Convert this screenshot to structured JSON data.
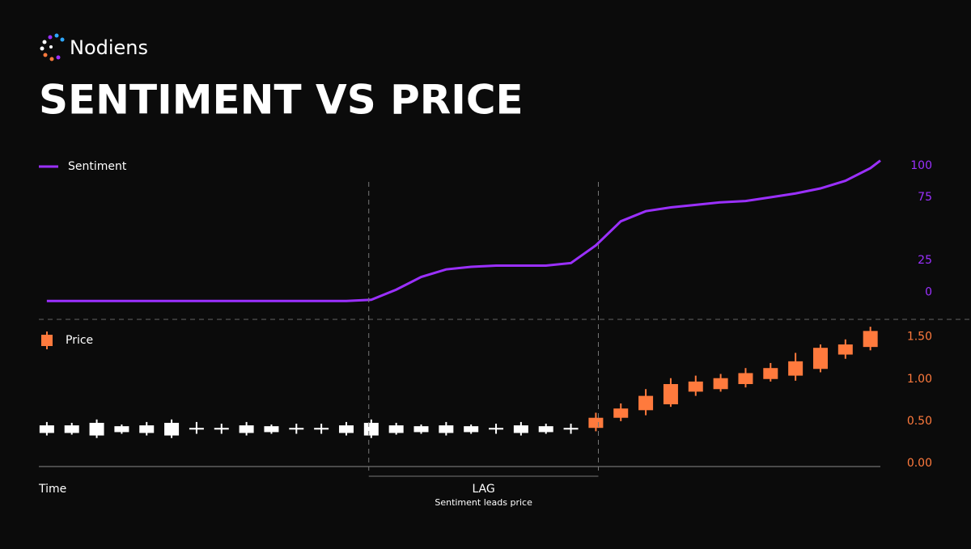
{
  "brand": "Nodiens",
  "title": "SENTIMENT VS PRICE",
  "chart_data": [
    {
      "type": "line",
      "series": [
        {
          "name": "Sentiment",
          "color": "#9b30ff",
          "x": [
            0,
            1,
            2,
            3,
            4,
            5,
            6,
            7,
            8,
            9,
            10,
            11,
            12,
            13,
            14,
            15,
            16,
            17,
            18,
            19,
            20,
            21,
            22,
            23,
            24,
            25,
            26,
            27,
            28,
            29,
            30,
            31,
            32,
            33,
            33.4
          ],
          "values": [
            -7,
            -7,
            -7,
            -7,
            -7,
            -7,
            -7,
            -7,
            -7,
            -7,
            -7,
            -7,
            -7,
            -6,
            2,
            12,
            18,
            20,
            21,
            21,
            21,
            23,
            37,
            56,
            64,
            67,
            69,
            71,
            72,
            75,
            78,
            82,
            88,
            98,
            104
          ]
        }
      ],
      "xlim": [
        -0.32,
        33.4
      ],
      "ylim": [
        -10,
        105
      ],
      "yticks": [
        0,
        25,
        75,
        100
      ]
    },
    {
      "type": "candlestick",
      "x_label": "Time",
      "lag_label": "LAG",
      "lag_note": "Sentiment leads price",
      "lag_range": [
        12.9,
        22.1
      ],
      "series": [
        {
          "name": "Price",
          "color": "#ff7a3d",
          "colors": [
            "#ffffff",
            "#ffffff",
            "#ffffff",
            "#ffffff",
            "#ffffff",
            "#ffffff",
            "#ffffff",
            "#ffffff",
            "#ffffff",
            "#ffffff",
            "#ffffff",
            "#ffffff",
            "#ffffff",
            "#ffffff",
            "#ffffff",
            "#ffffff",
            "#ffffff",
            "#ffffff",
            "#ffffff",
            "#ffffff",
            "#ffffff",
            "#ffffff",
            "#ff7a3d",
            "#ff7a3d",
            "#ff7a3d",
            "#ff7a3d",
            "#ff7a3d",
            "#ff7a3d",
            "#ff7a3d",
            "#ff7a3d",
            "#ff7a3d",
            "#ff7a3d",
            "#ff7a3d",
            "#ff7a3d"
          ],
          "x": [
            0,
            1,
            2,
            3,
            4,
            5,
            6,
            7,
            8,
            9,
            10,
            11,
            12,
            13,
            14,
            15,
            16,
            17,
            18,
            19,
            20,
            21,
            22,
            23,
            24,
            25,
            26,
            27,
            28,
            29,
            30,
            31,
            32,
            33
          ],
          "open": [
            0.36,
            0.36,
            0.33,
            0.37,
            0.36,
            0.33,
            0.4,
            0.4,
            0.36,
            0.37,
            0.4,
            0.4,
            0.36,
            0.33,
            0.36,
            0.37,
            0.36,
            0.37,
            0.4,
            0.36,
            0.37,
            0.4,
            0.42,
            0.54,
            0.63,
            0.7,
            0.85,
            0.88,
            0.94,
            1.0,
            1.04,
            1.12,
            1.29,
            1.38
          ],
          "close": [
            0.45,
            0.45,
            0.48,
            0.44,
            0.45,
            0.48,
            0.42,
            0.42,
            0.45,
            0.44,
            0.42,
            0.42,
            0.45,
            0.48,
            0.45,
            0.44,
            0.45,
            0.44,
            0.42,
            0.45,
            0.44,
            0.42,
            0.54,
            0.65,
            0.8,
            0.94,
            0.97,
            1.01,
            1.07,
            1.13,
            1.21,
            1.37,
            1.41,
            1.57
          ],
          "high": [
            0.49,
            0.48,
            0.52,
            0.46,
            0.49,
            0.52,
            0.49,
            0.47,
            0.49,
            0.46,
            0.47,
            0.47,
            0.49,
            0.52,
            0.48,
            0.46,
            0.49,
            0.46,
            0.47,
            0.49,
            0.47,
            0.47,
            0.6,
            0.71,
            0.88,
            1.01,
            1.04,
            1.06,
            1.13,
            1.19,
            1.31,
            1.41,
            1.47,
            1.62
          ],
          "low": [
            0.33,
            0.34,
            0.3,
            0.35,
            0.33,
            0.3,
            0.35,
            0.35,
            0.33,
            0.35,
            0.35,
            0.35,
            0.33,
            0.3,
            0.34,
            0.35,
            0.33,
            0.35,
            0.35,
            0.33,
            0.35,
            0.35,
            0.38,
            0.5,
            0.57,
            0.67,
            0.8,
            0.85,
            0.9,
            0.97,
            0.98,
            1.08,
            1.24,
            1.34
          ]
        }
      ],
      "xlim": [
        -0.32,
        33.4
      ],
      "ylim": [
        0,
        1.65
      ],
      "yticks": [
        {
          "value": 0,
          "label": "0.00"
        },
        {
          "value": 0.5,
          "label": "0.50"
        },
        {
          "value": 1,
          "label": "1.00"
        },
        {
          "value": 1.5,
          "label": "1.50"
        }
      ]
    }
  ]
}
